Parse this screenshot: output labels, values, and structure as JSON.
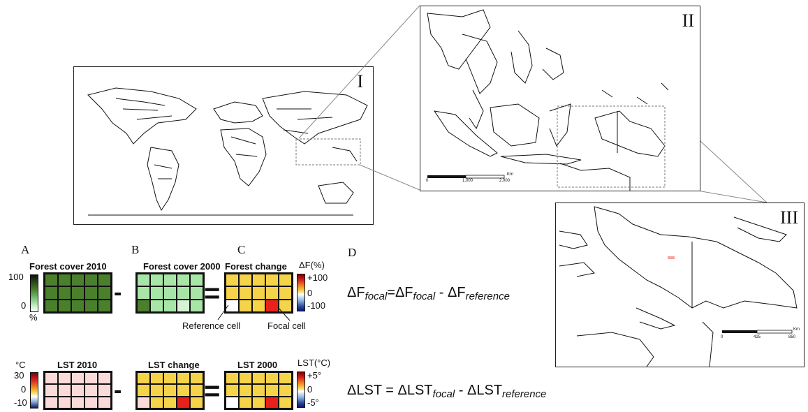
{
  "maps": {
    "world_label": "I",
    "sea_label": "II",
    "png_label": "III",
    "sea_scale": {
      "unit": "Km",
      "ticks": [
        "0",
        "1,000",
        "2,000"
      ]
    },
    "png_scale": {
      "unit": "Km",
      "ticks": [
        "0",
        "425",
        "850"
      ]
    }
  },
  "panels": {
    "a": {
      "letter": "A",
      "title": "Forest cover 2010",
      "scale_top": "100",
      "scale_bottom": "0",
      "unit": "%"
    },
    "b": {
      "letter": "B",
      "title": "Forest cover 2000"
    },
    "c": {
      "letter": "C",
      "title": "Forest change",
      "scale_label": "ΔF(%)",
      "ticks": [
        "+100",
        "0",
        "-100"
      ],
      "reference_label": "Reference cell",
      "focal_label": "Focal cell"
    },
    "d": {
      "letter": "D"
    }
  },
  "lst_row": {
    "unit": "°C",
    "ticks_left": [
      "30",
      "0",
      "-10"
    ],
    "lst2010_title": "LST 2010",
    "lst_change_title": "LST change",
    "lst2000_title": "LST 2000",
    "scale_label": "LST(°C)",
    "ticks_right": [
      "+5°",
      "0",
      "-5°"
    ]
  },
  "operators": {
    "minus": "-",
    "equals": "="
  },
  "equations": {
    "forest": {
      "lhs": "ΔF",
      "lhs_sub": "focal",
      "eq": "=ΔF",
      "mid_sub": "focal",
      "minus": " - ΔF",
      "rhs_sub": "reference"
    },
    "lst": {
      "lhs": "ΔLST = ",
      "term1": "ΔLST",
      "term1_sub": "focal",
      "minus": " - ΔLST",
      "term2_sub": "reference"
    }
  },
  "colors": {
    "forest_dark": "#4a7f2c",
    "forest_light": "#a8e6a8",
    "change_yellow": "#f5d44a",
    "focal_red": "#e8221a",
    "lst_pink": "#fbdada"
  }
}
